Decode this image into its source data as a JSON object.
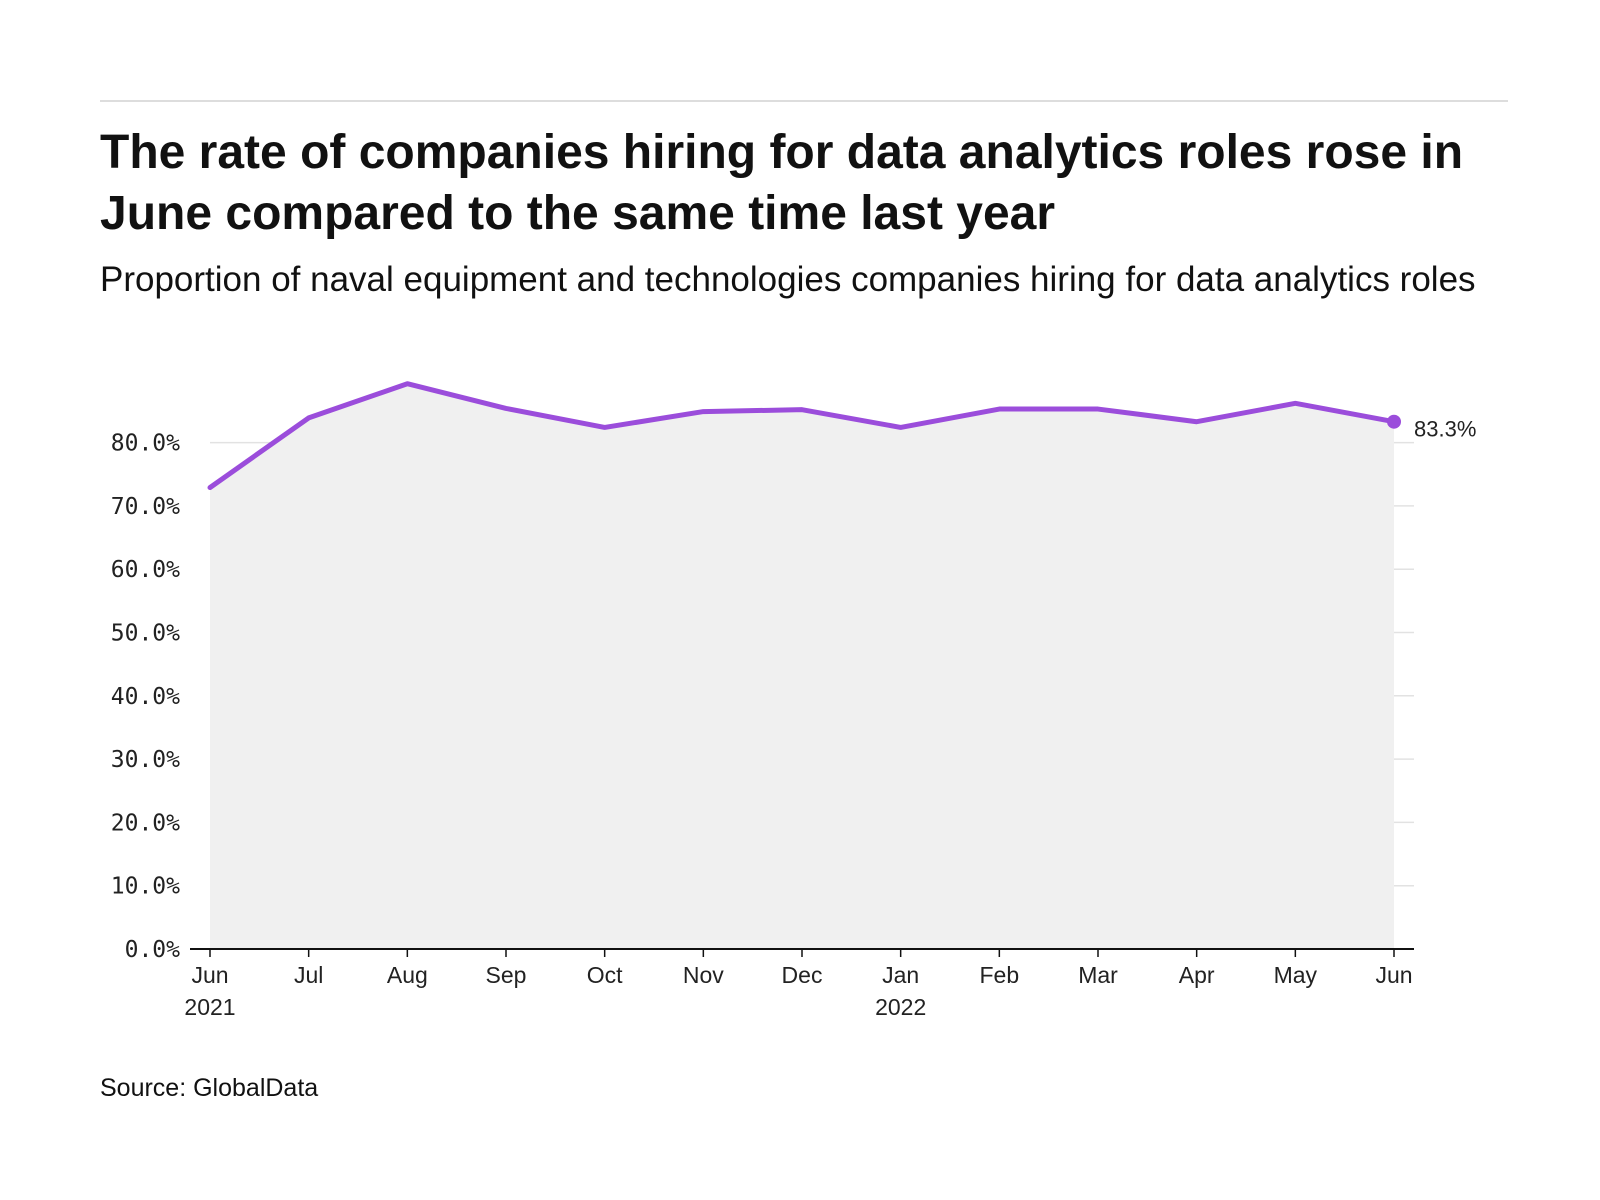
{
  "title": "The rate of companies hiring for data analytics roles rose in June compared to the same time last year",
  "subtitle": "Proportion of naval equipment and technologies companies hiring for data analytics roles",
  "source": "Source: GlobalData",
  "colors": {
    "line": "#9b4ddb",
    "area": "#f0f0f0",
    "grid": "#e2e2e2",
    "axis": "#111111"
  },
  "chart_data": {
    "type": "area",
    "title": "The rate of companies hiring for data analytics roles rose in June compared to the same time last year",
    "subtitle": "Proportion of naval equipment and technologies companies hiring for data analytics roles",
    "x": [
      "Jun 2021",
      "Jul 2021",
      "Aug 2021",
      "Sep 2021",
      "Oct 2021",
      "Nov 2021",
      "Dec 2021",
      "Jan 2022",
      "Feb 2022",
      "Mar 2022",
      "Apr 2022",
      "May 2022",
      "Jun 2022"
    ],
    "x_tick_labels": [
      {
        "month": "Jun",
        "year": "2021"
      },
      {
        "month": "Jul",
        "year": ""
      },
      {
        "month": "Aug",
        "year": ""
      },
      {
        "month": "Sep",
        "year": ""
      },
      {
        "month": "Oct",
        "year": ""
      },
      {
        "month": "Nov",
        "year": ""
      },
      {
        "month": "Dec",
        "year": ""
      },
      {
        "month": "Jan",
        "year": "2022"
      },
      {
        "month": "Feb",
        "year": ""
      },
      {
        "month": "Mar",
        "year": ""
      },
      {
        "month": "Apr",
        "year": ""
      },
      {
        "month": "May",
        "year": ""
      },
      {
        "month": "Jun",
        "year": ""
      }
    ],
    "series": [
      {
        "values": [
          72.9,
          83.9,
          89.3,
          85.4,
          82.4,
          84.9,
          85.2,
          82.4,
          85.3,
          85.3,
          83.3,
          86.2,
          83.3
        ]
      }
    ],
    "ylim": [
      0,
      90
    ],
    "y_ticks": [
      0,
      10,
      20,
      30,
      40,
      50,
      60,
      70,
      80
    ],
    "y_tick_labels": [
      "0.0%",
      "10.0%",
      "20.0%",
      "30.0%",
      "40.0%",
      "50.0%",
      "60.0%",
      "70.0%",
      "80.0%"
    ],
    "end_label": "83.3%",
    "grid": true,
    "legend": "none"
  }
}
